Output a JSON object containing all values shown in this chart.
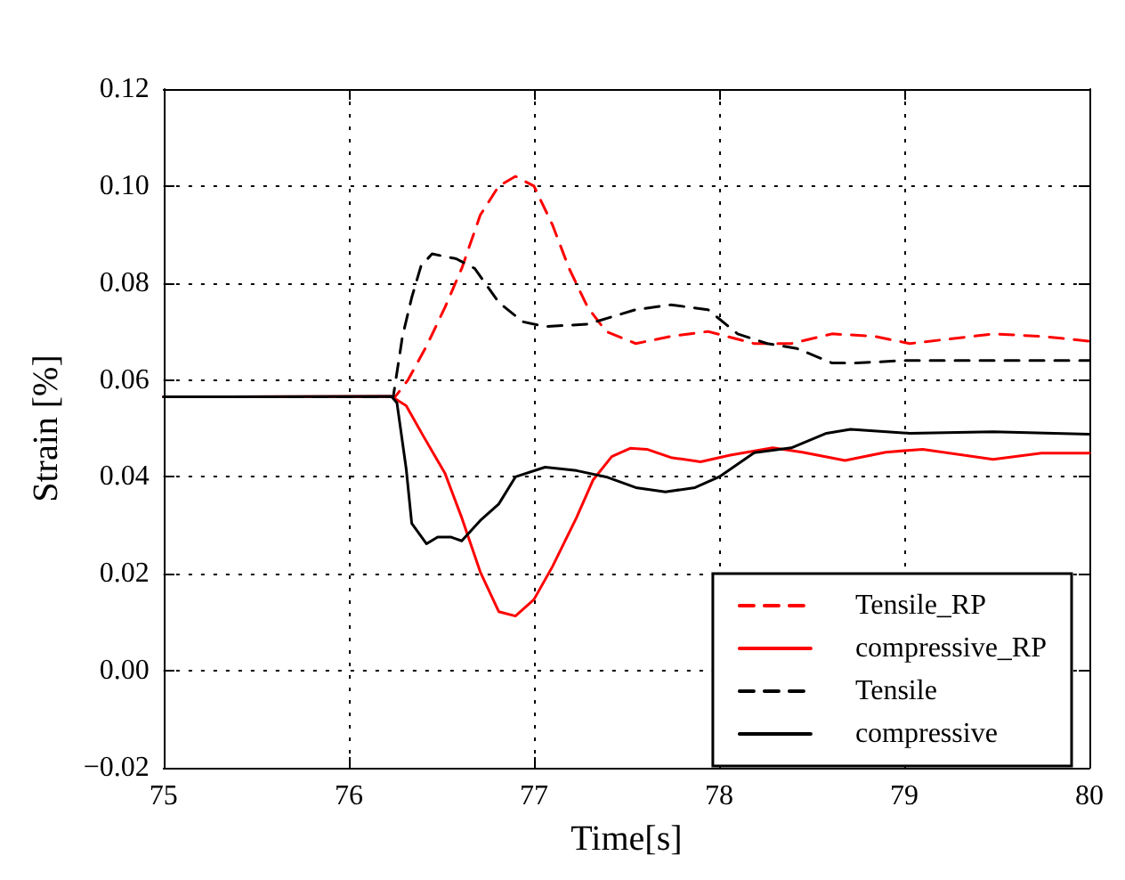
{
  "chart_data": {
    "type": "line",
    "xlabel": "Time[s]",
    "ylabel": "Strain [%]",
    "xlim": [
      75,
      80
    ],
    "xticks": [
      75,
      76,
      77,
      78,
      79,
      80
    ],
    "ylim": [
      -0.02,
      0.12
    ],
    "yticks": [
      {
        "value": -0.02,
        "label": "−0.02"
      },
      {
        "value": 0,
        "label": "0.00"
      },
      {
        "value": 0.02,
        "label": "0.02"
      },
      {
        "value": 0.04,
        "label": "0.04"
      },
      {
        "value": 0.06,
        "label": "0.06"
      },
      {
        "value": 0.08,
        "label": "0.08"
      },
      {
        "value": 0.1,
        "label": "0.10"
      },
      {
        "value": 0.12,
        "label": "0.12"
      }
    ],
    "grid": true,
    "legend": "bottom right",
    "marker": "none",
    "series": [
      {
        "name": "Tensile_RP",
        "color": "#ff0000",
        "line_style": "dashed",
        "x": [
          75,
          76.25,
          76.32,
          76.42,
          76.52,
          76.61,
          76.71,
          76.81,
          76.9,
          77.0,
          77.1,
          77.19,
          77.29,
          77.39,
          77.55,
          77.74,
          77.94,
          78.19,
          78.39,
          78.61,
          78.84,
          79.03,
          79.48,
          79.74,
          80
        ],
        "values": [
          0.0565,
          0.0565,
          0.06,
          0.067,
          0.075,
          0.083,
          0.094,
          0.1,
          0.102,
          0.1,
          0.092,
          0.083,
          0.075,
          0.07,
          0.0675,
          0.069,
          0.07,
          0.0675,
          0.0675,
          0.0695,
          0.069,
          0.0675,
          0.0695,
          0.069,
          0.068
        ]
      },
      {
        "name": "compressive_RP",
        "color": "#ff0000",
        "line_style": "solid",
        "x": [
          75,
          76.23,
          76.31,
          76.4,
          76.52,
          76.61,
          76.71,
          76.81,
          76.9,
          77.0,
          77.1,
          77.23,
          77.32,
          77.42,
          77.52,
          77.61,
          77.74,
          77.9,
          78.06,
          78.29,
          78.45,
          78.68,
          78.9,
          79.1,
          79.48,
          79.74,
          80
        ],
        "values": [
          0.0565,
          0.0566,
          0.0547,
          0.0486,
          0.0407,
          0.0316,
          0.0204,
          0.0122,
          0.0113,
          0.0147,
          0.0215,
          0.0316,
          0.0394,
          0.0442,
          0.0459,
          0.0457,
          0.044,
          0.0431,
          0.0445,
          0.046,
          0.0451,
          0.0434,
          0.0451,
          0.0457,
          0.0436,
          0.0449,
          0.0449
        ]
      },
      {
        "name": "Tensile",
        "color": "#000000",
        "line_style": "dashed",
        "x": [
          75,
          76.24,
          76.29,
          76.34,
          76.39,
          76.45,
          76.58,
          76.68,
          76.81,
          76.94,
          77.06,
          77.29,
          77.55,
          77.74,
          77.94,
          78.1,
          78.26,
          78.42,
          78.61,
          78.74,
          79.0,
          79.48,
          80
        ],
        "values": [
          0.0565,
          0.0565,
          0.069,
          0.077,
          0.0835,
          0.086,
          0.085,
          0.083,
          0.076,
          0.072,
          0.071,
          0.0715,
          0.0745,
          0.0755,
          0.0745,
          0.0695,
          0.0675,
          0.0665,
          0.0635,
          0.0635,
          0.064,
          0.064,
          0.064
        ]
      },
      {
        "name": "compressive",
        "color": "#000000",
        "line_style": "solid",
        "x": [
          75,
          76.23,
          76.26,
          76.31,
          76.34,
          76.42,
          76.48,
          76.55,
          76.61,
          76.71,
          76.81,
          76.9,
          77.06,
          77.23,
          77.39,
          77.55,
          77.71,
          77.87,
          78.0,
          78.19,
          78.39,
          78.58,
          78.71,
          79.03,
          79.48,
          80
        ],
        "values": [
          0.0565,
          0.0566,
          0.0553,
          0.0417,
          0.0304,
          0.0262,
          0.0276,
          0.0276,
          0.0268,
          0.031,
          0.0344,
          0.04,
          0.042,
          0.0413,
          0.04,
          0.0378,
          0.0369,
          0.0378,
          0.04,
          0.045,
          0.046,
          0.049,
          0.0498,
          0.049,
          0.0493,
          0.0488
        ]
      }
    ]
  }
}
